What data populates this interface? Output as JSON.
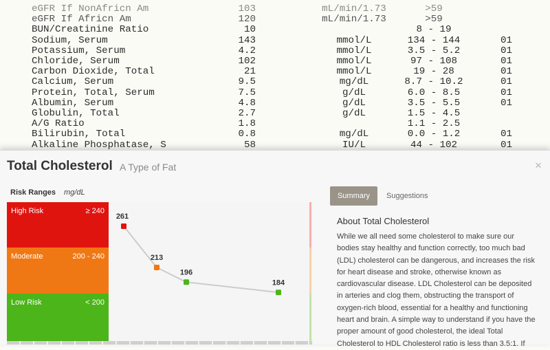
{
  "lab_report": {
    "rows": [
      {
        "name": "eGFR If NonAfricn Am",
        "value": "103",
        "unit": "mL/min/1.73",
        "range": ">59",
        "flag": ""
      },
      {
        "name": "eGFR If Africn Am",
        "value": "120",
        "unit": "mL/min/1.73",
        "range": ">59",
        "flag": ""
      },
      {
        "name": "BUN/Creatinine Ratio",
        "value": "10",
        "unit": "",
        "range": "8 - 19",
        "flag": ""
      },
      {
        "name": "Sodium, Serum",
        "value": "143",
        "unit": "mmol/L",
        "range": "134 - 144",
        "flag": "01"
      },
      {
        "name": "Potassium, Serum",
        "value": "4.2",
        "unit": "mmol/L",
        "range": "3.5 - 5.2",
        "flag": "01"
      },
      {
        "name": "Chloride, Serum",
        "value": "102",
        "unit": "mmol/L",
        "range": "97 - 108",
        "flag": "01"
      },
      {
        "name": "Carbon Dioxide, Total",
        "value": "21",
        "unit": "mmol/L",
        "range": "19 - 28",
        "flag": "01"
      },
      {
        "name": "Calcium, Serum",
        "value": "9.5",
        "unit": "mg/dL",
        "range": "8.7 - 10.2",
        "flag": "01"
      },
      {
        "name": "Protein, Total, Serum",
        "value": "7.5",
        "unit": "g/dL",
        "range": "6.0 - 8.5",
        "flag": "01"
      },
      {
        "name": "Albumin, Serum",
        "value": "4.8",
        "unit": "g/dL",
        "range": "3.5 - 5.5",
        "flag": "01"
      },
      {
        "name": "Globulin, Total",
        "value": "2.7",
        "unit": "g/dL",
        "range": "1.5 - 4.5",
        "flag": ""
      },
      {
        "name": "A/G Ratio",
        "value": "1.8",
        "unit": "",
        "range": "1.1 - 2.5",
        "flag": ""
      },
      {
        "name": "Bilirubin, Total",
        "value": "0.8",
        "unit": "mg/dL",
        "range": "0.0 - 1.2",
        "flag": "01"
      },
      {
        "name": "Alkaline Phosphatase, S",
        "value": "58",
        "unit": "IU/L",
        "range": "44 - 102",
        "flag": "01"
      }
    ]
  },
  "card": {
    "title": "Total Cholesterol",
    "subtitle": "A Type of Fat",
    "close_icon": "×",
    "risk_heading": "Risk Ranges",
    "risk_unit": "mg/dL",
    "bands": [
      {
        "label": "High Risk",
        "range": "≥ 240",
        "color": "#e0140f"
      },
      {
        "label": "Moderate",
        "range": "200 - 240",
        "color": "#f07814"
      },
      {
        "label": "Low Risk",
        "range": "< 200",
        "color": "#4cb519"
      }
    ],
    "tabs": [
      {
        "label": "Summary",
        "active": true
      },
      {
        "label": "Suggestions",
        "active": false
      }
    ],
    "about_title": "About Total Cholesterol",
    "about_text": "While we all need some cholesterol to make sure our bodies stay healthy and function correctly, too much bad (LDL) cholesterol can be dangerous, and increases the risk for heart disease and stroke, otherwise known as cardiovascular disease. LDL Cholesterol can be deposited in arteries and clog them, obstructing the transport of oxygen-rich blood, essential for a healthy and functioning heart and brain. A simple way to understand if you have the proper amount of good cholesterol, the ideal Total Cholesterol to HDL Cholesterol ratio is less than 3.5:1. If"
  },
  "chart_data": {
    "type": "line",
    "x": [
      1,
      2,
      3,
      4
    ],
    "values": [
      261,
      213,
      196,
      184
    ],
    "labels": [
      "261",
      "213",
      "196",
      "184"
    ],
    "point_colors": [
      "#e0140f",
      "#f07814",
      "#4cb519",
      "#4cb519"
    ],
    "line_color": "#cccccc",
    "title": "",
    "xlabel": "",
    "ylabel": "mg/dL"
  }
}
